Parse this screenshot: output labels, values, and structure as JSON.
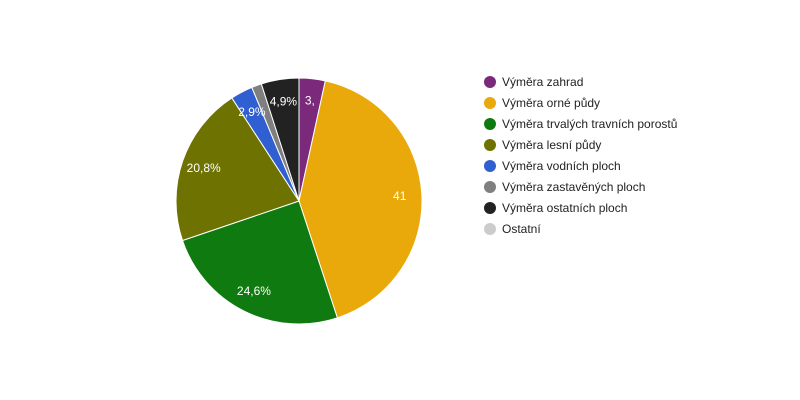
{
  "chart_data": {
    "type": "pie",
    "series": [
      {
        "name": "Výměra zahrad",
        "value": 3.4,
        "label": "3,",
        "color": "#7b2a7b"
      },
      {
        "name": "Výměra orné půdy",
        "value": 41.1,
        "label": "41",
        "color": "#eaa90a"
      },
      {
        "name": "Výměra trvalých travních porostů",
        "value": 24.6,
        "label": "24,6%",
        "color": "#0f7a0f"
      },
      {
        "name": "Výměra lesní půdy",
        "value": 20.8,
        "label": "20,8%",
        "color": "#6e7200"
      },
      {
        "name": "Výměra vodních ploch",
        "value": 2.9,
        "label": "2,9%",
        "color": "#2f5fd0"
      },
      {
        "name": "Výměra zastavěných ploch",
        "value": 1.3,
        "label": "",
        "color": "#7f7f7f"
      },
      {
        "name": "Výměra ostatních ploch",
        "value": 4.9,
        "label": "4,9%",
        "color": "#222222"
      },
      {
        "name": "Ostatní",
        "value": 0,
        "label": "",
        "color": "#cccccc"
      }
    ],
    "legend_position": "right"
  }
}
